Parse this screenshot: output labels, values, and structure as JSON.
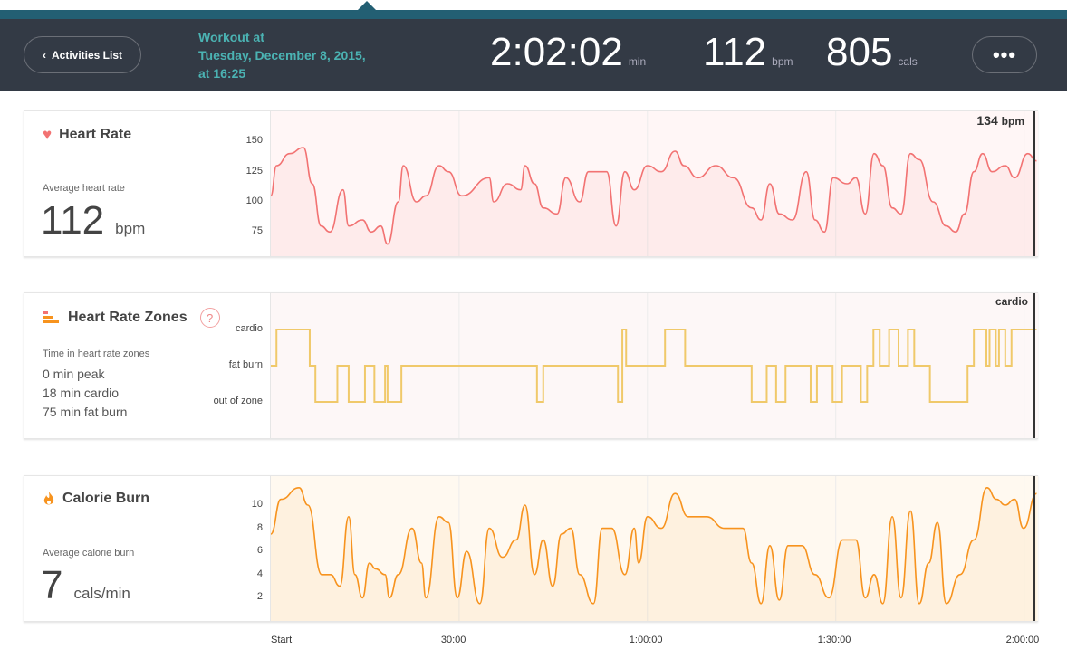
{
  "header": {
    "back_label": "Activities List",
    "title_lines": [
      "Workout at",
      "Tuesday, December 8, 2015,",
      "at 16:25"
    ],
    "duration": "2:02:02",
    "duration_unit": "min",
    "bpm": "112",
    "bpm_unit": "bpm",
    "cals": "805",
    "cals_unit": "cals",
    "more_label": "•••"
  },
  "colors": {
    "teal": "#235f73",
    "header_bg": "#333a45",
    "title": "#4bb3b3",
    "hr": "#f27272",
    "zones": "#f0c96a",
    "cal": "#f7931e"
  },
  "heart_rate": {
    "title": "Heart Rate",
    "icon": "heart-icon",
    "avg_label": "Average heart rate",
    "avg_value": "112",
    "avg_unit": "bpm",
    "current_value": "134",
    "current_unit": "bpm"
  },
  "zones": {
    "title": "Heart Rate Zones",
    "icon": "bars-icon",
    "help": "?",
    "summary_label": "Time in heart rate zones",
    "lines": [
      "0 min peak",
      "18 min cardio",
      "75 min fat burn"
    ],
    "current": "cardio"
  },
  "calories": {
    "title": "Calorie Burn",
    "icon": "flame-icon",
    "avg_label": "Average calorie burn",
    "avg_value": "7",
    "avg_unit": "cals/min"
  },
  "x_axis": {
    "labels": [
      "Start",
      "30:00",
      "1:00:00",
      "1:30:00",
      "2:00:00"
    ],
    "ticks_min": [
      0,
      30,
      60,
      90,
      120
    ],
    "range_min": [
      0,
      122
    ]
  },
  "chart_data": [
    {
      "type": "area",
      "yticks": [
        150,
        125,
        100,
        75
      ],
      "ylim": [
        55,
        175
      ],
      "x_unit": "min",
      "y_unit": "bpm",
      "points": [
        [
          0,
          105
        ],
        [
          0.9,
          130
        ],
        [
          3,
          140
        ],
        [
          5.2,
          145
        ],
        [
          6.6,
          115
        ],
        [
          8,
          80
        ],
        [
          9.4,
          75
        ],
        [
          11.5,
          110
        ],
        [
          12.4,
          80
        ],
        [
          14.6,
          85
        ],
        [
          16,
          75
        ],
        [
          17.5,
          80
        ],
        [
          18.6,
          65
        ],
        [
          20.3,
          100
        ],
        [
          21.1,
          130
        ],
        [
          23.2,
          100
        ],
        [
          24.7,
          105
        ],
        [
          26.8,
          130
        ],
        [
          28.3,
          125
        ],
        [
          30.4,
          105
        ],
        [
          34.8,
          120
        ],
        [
          35.5,
          100
        ],
        [
          37.7,
          115
        ],
        [
          39.8,
          110
        ],
        [
          40.5,
          130
        ],
        [
          42,
          115
        ],
        [
          43.4,
          95
        ],
        [
          45.6,
          90
        ],
        [
          47,
          120
        ],
        [
          49.2,
          100
        ],
        [
          50.6,
          125
        ],
        [
          53.5,
          125
        ],
        [
          55,
          80
        ],
        [
          56.4,
          125
        ],
        [
          57.9,
          110
        ],
        [
          60,
          130
        ],
        [
          62.2,
          125
        ],
        [
          64.4,
          142
        ],
        [
          65.8,
          130
        ],
        [
          68,
          120
        ],
        [
          70.9,
          130
        ],
        [
          73.7,
          120
        ],
        [
          76.6,
          95
        ],
        [
          78.1,
          85
        ],
        [
          79.5,
          115
        ],
        [
          81,
          90
        ],
        [
          83.1,
          85
        ],
        [
          85.3,
          125
        ],
        [
          86.7,
          85
        ],
        [
          88.2,
          75
        ],
        [
          89.6,
          120
        ],
        [
          91.8,
          115
        ],
        [
          93.2,
          120
        ],
        [
          94.7,
          90
        ],
        [
          96.1,
          140
        ],
        [
          97.5,
          130
        ],
        [
          99,
          95
        ],
        [
          100.4,
          90
        ],
        [
          101.9,
          140
        ],
        [
          103.3,
          135
        ],
        [
          105.5,
          100
        ],
        [
          107.6,
          80
        ],
        [
          109.1,
          75
        ],
        [
          110.5,
          90
        ],
        [
          112,
          125
        ],
        [
          113.4,
          140
        ],
        [
          114.9,
          125
        ],
        [
          117,
          130
        ],
        [
          118.5,
          120
        ],
        [
          120.6,
          140
        ],
        [
          122,
          134
        ]
      ]
    },
    {
      "type": "line",
      "step": true,
      "levels": [
        "cardio",
        "fat burn",
        "out of zone"
      ],
      "steps": [
        [
          0,
          "fat burn"
        ],
        [
          0.9,
          "cardio"
        ],
        [
          6.2,
          "fat burn"
        ],
        [
          7.1,
          "out of zone"
        ],
        [
          10.6,
          "fat burn"
        ],
        [
          12.4,
          "out of zone"
        ],
        [
          15,
          "fat burn"
        ],
        [
          16.5,
          "out of zone"
        ],
        [
          18.2,
          "fat burn"
        ],
        [
          18.6,
          "out of zone"
        ],
        [
          20.8,
          "fat burn"
        ],
        [
          42.4,
          "out of zone"
        ],
        [
          43.4,
          "fat burn"
        ],
        [
          55.3,
          "out of zone"
        ],
        [
          56,
          "cardio"
        ],
        [
          56.6,
          "fat burn"
        ],
        [
          62.8,
          "cardio"
        ],
        [
          66,
          "fat burn"
        ],
        [
          76.6,
          "out of zone"
        ],
        [
          79,
          "fat burn"
        ],
        [
          80.5,
          "out of zone"
        ],
        [
          82,
          "fat burn"
        ],
        [
          86,
          "out of zone"
        ],
        [
          87,
          "fat burn"
        ],
        [
          89.5,
          "out of zone"
        ],
        [
          91,
          "fat burn"
        ],
        [
          94,
          "out of zone"
        ],
        [
          95,
          "fat burn"
        ],
        [
          96,
          "cardio"
        ],
        [
          97,
          "fat burn"
        ],
        [
          98.5,
          "cardio"
        ],
        [
          100,
          "fat burn"
        ],
        [
          101.5,
          "cardio"
        ],
        [
          102.5,
          "fat burn"
        ],
        [
          105,
          "out of zone"
        ],
        [
          111,
          "fat burn"
        ],
        [
          112,
          "cardio"
        ],
        [
          114,
          "fat burn"
        ],
        [
          114.5,
          "cardio"
        ],
        [
          115.5,
          "fat burn"
        ],
        [
          116,
          "cardio"
        ],
        [
          117,
          "fat burn"
        ],
        [
          118,
          "cardio"
        ],
        [
          122,
          "cardio"
        ]
      ]
    },
    {
      "type": "area",
      "yticks": [
        10,
        8,
        6,
        4,
        2
      ],
      "ylim": [
        0,
        12.5
      ],
      "x_unit": "min",
      "y_unit": "cals/min",
      "points": [
        [
          0,
          7.5
        ],
        [
          1.6,
          10.5
        ],
        [
          4.5,
          11.5
        ],
        [
          5.9,
          10
        ],
        [
          8.1,
          4
        ],
        [
          9.5,
          4
        ],
        [
          11,
          3
        ],
        [
          12.4,
          9
        ],
        [
          13.4,
          4
        ],
        [
          14.6,
          2
        ],
        [
          15.7,
          5
        ],
        [
          16.7,
          4.5
        ],
        [
          18.2,
          4
        ],
        [
          18.9,
          2
        ],
        [
          20.3,
          4
        ],
        [
          22.5,
          8
        ],
        [
          24,
          5
        ],
        [
          24.7,
          2
        ],
        [
          26.8,
          9
        ],
        [
          28.3,
          8.5
        ],
        [
          29.7,
          2
        ],
        [
          31.2,
          6
        ],
        [
          33.3,
          1.5
        ],
        [
          34.8,
          8
        ],
        [
          36.9,
          5.5
        ],
        [
          39.1,
          7
        ],
        [
          40.5,
          10
        ],
        [
          42,
          4
        ],
        [
          43.4,
          7
        ],
        [
          44.9,
          3
        ],
        [
          46.3,
          7.5
        ],
        [
          47.8,
          8
        ],
        [
          49.2,
          4
        ],
        [
          51.4,
          1.5
        ],
        [
          52.8,
          8
        ],
        [
          54.3,
          8
        ],
        [
          56.4,
          4
        ],
        [
          57.9,
          8
        ],
        [
          58.6,
          5
        ],
        [
          60,
          9
        ],
        [
          62.2,
          8
        ],
        [
          64.4,
          11
        ],
        [
          66.5,
          9
        ],
        [
          69.4,
          9
        ],
        [
          72.3,
          8
        ],
        [
          75.2,
          8
        ],
        [
          76.6,
          5
        ],
        [
          78.1,
          1.5
        ],
        [
          79.5,
          6.5
        ],
        [
          81,
          1.8
        ],
        [
          82.4,
          6.5
        ],
        [
          84.6,
          6.5
        ],
        [
          86.7,
          4
        ],
        [
          88.9,
          2
        ],
        [
          91.1,
          7
        ],
        [
          93.2,
          7
        ],
        [
          94.7,
          2
        ],
        [
          96.1,
          4
        ],
        [
          97.5,
          1.5
        ],
        [
          99,
          9
        ],
        [
          100.4,
          2
        ],
        [
          101.9,
          9.5
        ],
        [
          103.3,
          1.5
        ],
        [
          104.8,
          5
        ],
        [
          106.2,
          8.5
        ],
        [
          107.6,
          1.5
        ],
        [
          109.8,
          4
        ],
        [
          112,
          7
        ],
        [
          114.1,
          11.5
        ],
        [
          115.6,
          10.5
        ],
        [
          117,
          10
        ],
        [
          118.5,
          10.5
        ],
        [
          119.9,
          8
        ],
        [
          122,
          11
        ]
      ]
    }
  ]
}
